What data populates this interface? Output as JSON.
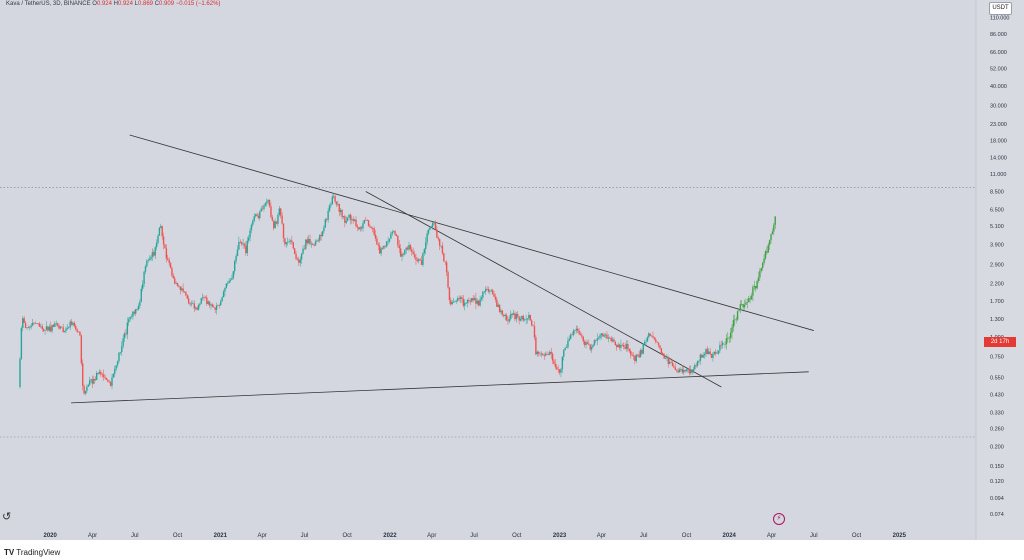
{
  "header": {
    "symbol": "Kava / TetherUS, 3D, BINANCE",
    "open_label": "O",
    "open": "0.924",
    "high_label": "H",
    "high": "0.924",
    "low_label": "L",
    "low": "0.869",
    "close_label": "C",
    "close": "0.909",
    "change": "−0.015 (−1.62%)"
  },
  "currency": "USDT",
  "price_tag": "2d 17h",
  "footer": {
    "brand": "TradingView",
    "logo_icon": "tradingview-logo-icon"
  },
  "colors": {
    "up": "#26a69a",
    "down": "#ef5350",
    "projection": "#43a047",
    "trendline": "#333333"
  },
  "chart_data": {
    "type": "candlestick",
    "yscale": "log",
    "ylim": [
      0.064,
      130
    ],
    "xlim": [
      "2019-09-15",
      "2025-06-15"
    ],
    "y_ticks": [
      "110.000",
      "86.000",
      "66.000",
      "52.000",
      "40.000",
      "30.000",
      "23.000",
      "18.000",
      "14.000",
      "11.000",
      "8.500",
      "6.500",
      "5.100",
      "3.900",
      "2.900",
      "2.200",
      "1.700",
      "1.300",
      "1.000",
      "0.750",
      "0.550",
      "0.430",
      "0.330",
      "0.260",
      "0.200",
      "0.150",
      "0.120",
      "0.094",
      "0.074"
    ],
    "x_ticks": [
      {
        "label": "2020",
        "date": "2020-01-01"
      },
      {
        "label": "Apr",
        "date": "2020-04-01"
      },
      {
        "label": "Jul",
        "date": "2020-07-01"
      },
      {
        "label": "Oct",
        "date": "2020-10-01"
      },
      {
        "label": "2021",
        "date": "2021-01-01"
      },
      {
        "label": "Apr",
        "date": "2021-04-01"
      },
      {
        "label": "Jul",
        "date": "2021-07-01"
      },
      {
        "label": "Oct",
        "date": "2021-10-01"
      },
      {
        "label": "2022",
        "date": "2022-01-01"
      },
      {
        "label": "Apr",
        "date": "2022-04-01"
      },
      {
        "label": "Jul",
        "date": "2022-07-01"
      },
      {
        "label": "Oct",
        "date": "2022-10-01"
      },
      {
        "label": "2023",
        "date": "2023-01-01"
      },
      {
        "label": "Apr",
        "date": "2023-04-01"
      },
      {
        "label": "Jul",
        "date": "2023-07-01"
      },
      {
        "label": "Oct",
        "date": "2023-10-01"
      },
      {
        "label": "2024",
        "date": "2024-01-01"
      },
      {
        "label": "Apr",
        "date": "2024-04-01"
      },
      {
        "label": "Jul",
        "date": "2024-07-01"
      },
      {
        "label": "Oct",
        "date": "2024-10-01"
      },
      {
        "label": "2025",
        "date": "2025-01-01"
      }
    ],
    "price_path": [
      [
        "2019-10-25",
        0.48
      ],
      [
        "2019-11-01",
        1.3
      ],
      [
        "2019-11-15",
        1.1
      ],
      [
        "2019-12-01",
        1.25
      ],
      [
        "2019-12-20",
        1.1
      ],
      [
        "2020-01-15",
        1.2
      ],
      [
        "2020-02-01",
        1.1
      ],
      [
        "2020-02-20",
        1.25
      ],
      [
        "2020-03-05",
        1.0
      ],
      [
        "2020-03-12",
        0.42
      ],
      [
        "2020-03-25",
        0.5
      ],
      [
        "2020-04-15",
        0.6
      ],
      [
        "2020-05-10",
        0.5
      ],
      [
        "2020-06-01",
        0.85
      ],
      [
        "2020-06-20",
        1.3
      ],
      [
        "2020-07-10",
        1.6
      ],
      [
        "2020-07-25",
        3.0
      ],
      [
        "2020-08-10",
        3.4
      ],
      [
        "2020-08-25",
        5.2
      ],
      [
        "2020-09-05",
        3.5
      ],
      [
        "2020-09-20",
        2.4
      ],
      [
        "2020-10-10",
        2.0
      ],
      [
        "2020-10-25",
        1.7
      ],
      [
        "2020-11-10",
        1.5
      ],
      [
        "2020-11-25",
        1.8
      ],
      [
        "2020-12-15",
        1.5
      ],
      [
        "2020-12-31",
        1.6
      ],
      [
        "2021-01-10",
        2.1
      ],
      [
        "2021-01-25",
        2.3
      ],
      [
        "2021-02-10",
        4.0
      ],
      [
        "2021-02-25",
        3.6
      ],
      [
        "2021-03-10",
        5.5
      ],
      [
        "2021-03-25",
        6.0
      ],
      [
        "2021-04-05",
        7.0
      ],
      [
        "2021-04-15",
        7.5
      ],
      [
        "2021-04-25",
        5.0
      ],
      [
        "2021-05-10",
        6.5
      ],
      [
        "2021-05-20",
        3.8
      ],
      [
        "2021-06-01",
        4.2
      ],
      [
        "2021-06-20",
        2.8
      ],
      [
        "2021-07-05",
        4.2
      ],
      [
        "2021-07-20",
        3.9
      ],
      [
        "2021-08-05",
        4.4
      ],
      [
        "2021-08-20",
        6.0
      ],
      [
        "2021-08-31",
        8.0
      ],
      [
        "2021-09-10",
        7.0
      ],
      [
        "2021-09-25",
        5.5
      ],
      [
        "2021-10-10",
        6.0
      ],
      [
        "2021-10-25",
        5.0
      ],
      [
        "2021-11-10",
        5.5
      ],
      [
        "2021-11-25",
        4.8
      ],
      [
        "2021-12-10",
        3.5
      ],
      [
        "2021-12-25",
        4.0
      ],
      [
        "2022-01-10",
        5.0
      ],
      [
        "2022-01-25",
        3.2
      ],
      [
        "2022-02-10",
        3.8
      ],
      [
        "2022-02-25",
        3.2
      ],
      [
        "2022-03-10",
        3.0
      ],
      [
        "2022-03-25",
        5.0
      ],
      [
        "2022-04-05",
        5.3
      ],
      [
        "2022-04-20",
        3.8
      ],
      [
        "2022-05-01",
        2.8
      ],
      [
        "2022-05-10",
        1.6
      ],
      [
        "2022-05-25",
        1.8
      ],
      [
        "2022-06-10",
        1.6
      ],
      [
        "2022-06-25",
        1.8
      ],
      [
        "2022-07-10",
        1.6
      ],
      [
        "2022-07-25",
        2.0
      ],
      [
        "2022-08-10",
        1.9
      ],
      [
        "2022-08-25",
        1.5
      ],
      [
        "2022-09-10",
        1.3
      ],
      [
        "2022-09-25",
        1.4
      ],
      [
        "2022-10-10",
        1.3
      ],
      [
        "2022-10-25",
        1.35
      ],
      [
        "2022-11-05",
        1.2
      ],
      [
        "2022-11-10",
        0.8
      ],
      [
        "2022-11-25",
        0.75
      ],
      [
        "2022-12-10",
        0.8
      ],
      [
        "2022-12-31",
        0.58
      ],
      [
        "2023-01-10",
        0.8
      ],
      [
        "2023-01-25",
        1.05
      ],
      [
        "2023-02-10",
        1.1
      ],
      [
        "2023-02-25",
        0.9
      ],
      [
        "2023-03-10",
        0.85
      ],
      [
        "2023-03-25",
        1.0
      ],
      [
        "2023-04-10",
        1.05
      ],
      [
        "2023-04-25",
        0.92
      ],
      [
        "2023-05-10",
        0.85
      ],
      [
        "2023-05-25",
        0.88
      ],
      [
        "2023-06-10",
        0.72
      ],
      [
        "2023-06-25",
        0.8
      ],
      [
        "2023-07-10",
        1.05
      ],
      [
        "2023-07-25",
        0.95
      ],
      [
        "2023-08-10",
        0.8
      ],
      [
        "2023-08-25",
        0.68
      ],
      [
        "2023-09-10",
        0.62
      ],
      [
        "2023-09-25",
        0.62
      ],
      [
        "2023-10-10",
        0.6
      ],
      [
        "2023-10-25",
        0.68
      ],
      [
        "2023-11-10",
        0.82
      ],
      [
        "2023-11-25",
        0.76
      ],
      [
        "2023-12-10",
        0.85
      ],
      [
        "2023-12-20",
        0.9
      ]
    ],
    "projection_path": [
      [
        "2023-12-20",
        0.9
      ],
      [
        "2024-01-05",
        1.1
      ],
      [
        "2024-01-20",
        1.45
      ],
      [
        "2024-02-01",
        1.65
      ],
      [
        "2024-02-15",
        1.8
      ],
      [
        "2024-03-01",
        2.2
      ],
      [
        "2024-03-15",
        3.2
      ],
      [
        "2024-03-25",
        3.8
      ],
      [
        "2024-04-10",
        6.3
      ]
    ],
    "trendlines": [
      {
        "from": [
          "2020-06-20",
          19.5
        ],
        "to": [
          "2024-07-01",
          1.1
        ]
      },
      {
        "from": [
          "2021-11-10",
          8.5
        ],
        "to": [
          "2023-12-15",
          0.48
        ]
      },
      {
        "from": [
          "2020-02-15",
          0.38
        ],
        "to": [
          "2024-06-20",
          0.6
        ]
      }
    ],
    "hlines": [
      9.0,
      0.23
    ],
    "grid": false
  }
}
